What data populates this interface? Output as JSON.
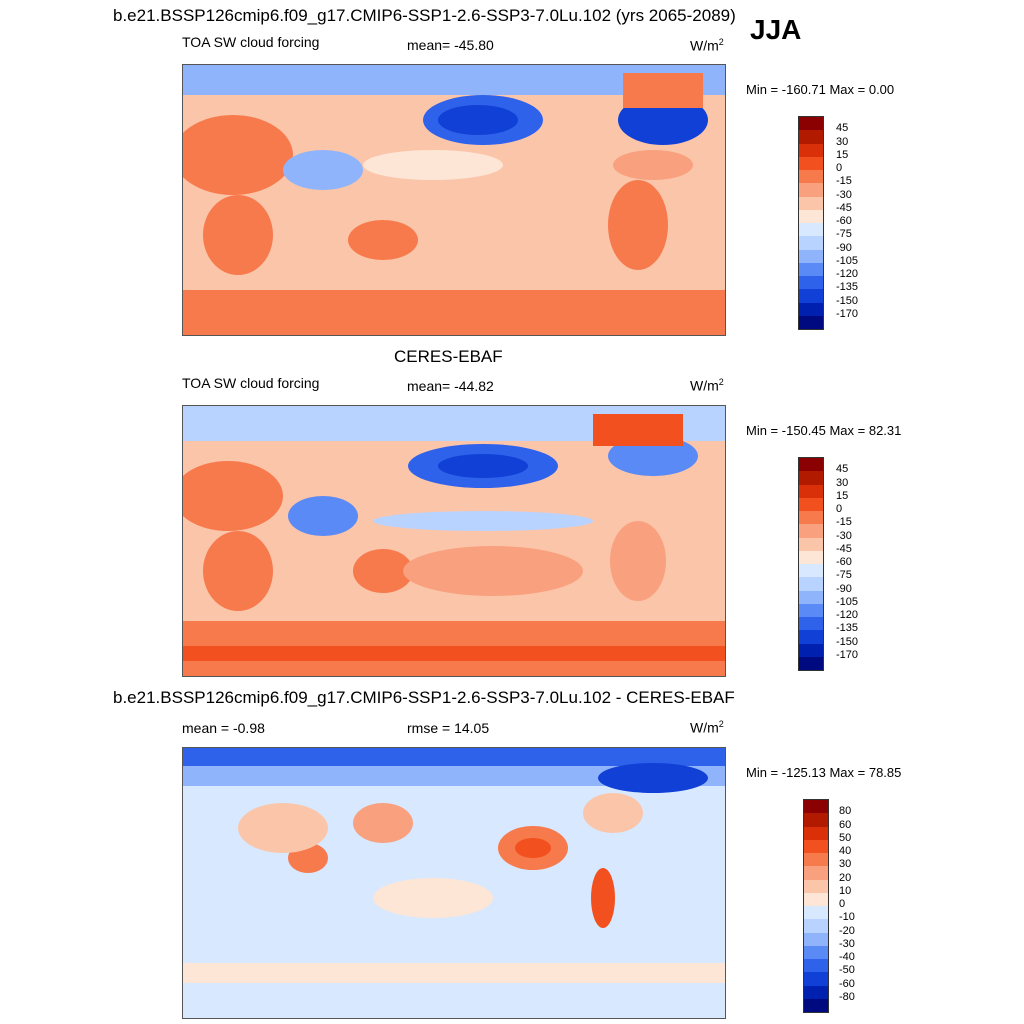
{
  "header": {
    "case_title": "b.e21.BSSP126cmip6.f09_g17.CMIP6-SSP1-2.6-SSP3-7.0Lu.102 (yrs 2065-2089)",
    "season": "JJA"
  },
  "panels": [
    {
      "variable": "TOA SW cloud forcing",
      "stat": "mean= -45.80",
      "units": "W/m",
      "units_sup": "2",
      "minmax": "Min = -160.71 Max =   0.00",
      "colorbar_labels": [
        "45",
        "30",
        "15",
        "0",
        "-15",
        "-30",
        "-45",
        "-60",
        "-75",
        "-90",
        "-105",
        "-120",
        "-135",
        "-150",
        "-170"
      ]
    },
    {
      "dataset": "CERES-EBAF",
      "variable": "TOA SW cloud forcing",
      "stat": "mean= -44.82",
      "units": "W/m",
      "units_sup": "2",
      "minmax": "Min = -150.45 Max =  82.31",
      "colorbar_labels": [
        "45",
        "30",
        "15",
        "0",
        "-15",
        "-30",
        "-45",
        "-60",
        "-75",
        "-90",
        "-105",
        "-120",
        "-135",
        "-150",
        "-170"
      ]
    },
    {
      "diff_title": "b.e21.BSSP126cmip6.f09_g17.CMIP6-SSP1-2.6-SSP3-7.0Lu.102 - CERES-EBAF",
      "stat": "mean =  -0.98",
      "rmse": "rmse =  14.05",
      "units": "W/m",
      "units_sup": "2",
      "minmax": "Min = -125.13 Max =  78.85",
      "colorbar_labels": [
        "80",
        "60",
        "50",
        "40",
        "30",
        "20",
        "10",
        "0",
        "-10",
        "-20",
        "-30",
        "-40",
        "-50",
        "-60",
        "-80"
      ]
    }
  ],
  "colors": {
    "abs_scale": [
      "#8b0000",
      "#b21a00",
      "#d9300a",
      "#f2501f",
      "#f77a4d",
      "#f9a07e",
      "#fbc5aa",
      "#fde6d6",
      "#d8e8ff",
      "#b8d3ff",
      "#8fb4fb",
      "#5a8af5",
      "#2e62eb",
      "#1040d5",
      "#0020b0",
      "#000a80"
    ],
    "diff_scale": [
      "#8b0000",
      "#b21a00",
      "#d9300a",
      "#f2501f",
      "#f77a4d",
      "#f9a07e",
      "#fbc5aa",
      "#fde6d6",
      "#d8e8ff",
      "#b8d3ff",
      "#8fb4fb",
      "#5a8af5",
      "#2e62eb",
      "#1040d5",
      "#0020b0",
      "#000a80"
    ]
  }
}
